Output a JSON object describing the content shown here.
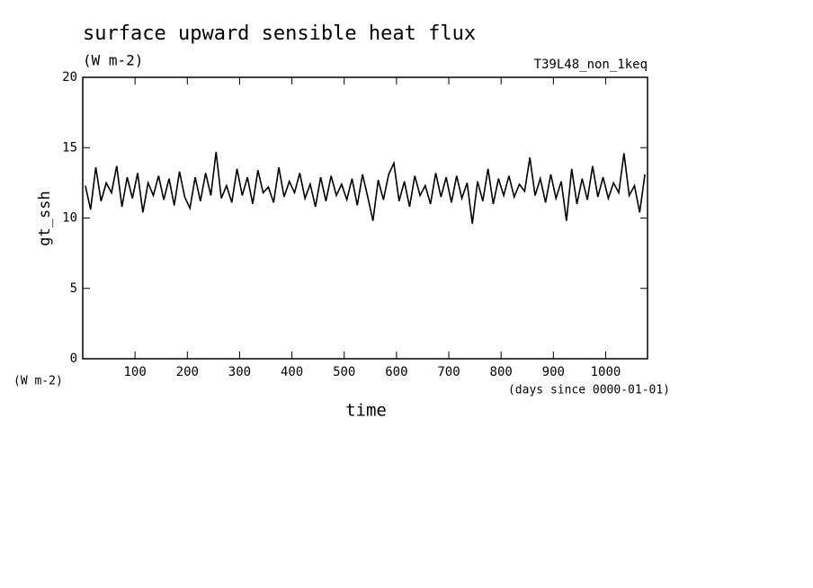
{
  "chart_data": {
    "type": "line",
    "title": "surface upward sensible heat flux",
    "subtitle": "(W m-2)",
    "experiment": "T39L48_non_1keq",
    "ylabel": "gt_ssh",
    "y_unit": "(W m-2)",
    "xlabel": "time",
    "x_unit": "(days since 0000-01-01)",
    "x": [
      5,
      15,
      25,
      35,
      45,
      55,
      65,
      75,
      85,
      95,
      105,
      115,
      125,
      135,
      145,
      155,
      165,
      175,
      185,
      195,
      205,
      215,
      225,
      235,
      245,
      255,
      265,
      275,
      285,
      295,
      305,
      315,
      325,
      335,
      345,
      355,
      365,
      375,
      385,
      395,
      405,
      415,
      425,
      435,
      445,
      455,
      465,
      475,
      485,
      495,
      505,
      515,
      525,
      535,
      545,
      555,
      565,
      575,
      585,
      595,
      605,
      615,
      625,
      635,
      645,
      655,
      665,
      675,
      685,
      695,
      705,
      715,
      725,
      735,
      745,
      755,
      765,
      775,
      785,
      795,
      805,
      815,
      825,
      835,
      845,
      855,
      865,
      875,
      885,
      895,
      905,
      915,
      925,
      935,
      945,
      955,
      965,
      975,
      985,
      995,
      1005,
      1015,
      1025,
      1035,
      1045,
      1055,
      1065,
      1075
    ],
    "series": [
      {
        "name": "gt_ssh",
        "color": "#000000",
        "values": [
          12.3,
          10.6,
          13.6,
          11.2,
          12.5,
          11.8,
          13.7,
          10.8,
          12.9,
          11.4,
          13.2,
          10.4,
          12.5,
          11.6,
          13.0,
          11.3,
          12.8,
          10.9,
          13.3,
          11.5,
          10.7,
          12.9,
          11.2,
          13.2,
          11.6,
          14.7,
          11.4,
          12.3,
          11.1,
          13.5,
          11.6,
          12.9,
          11.0,
          13.4,
          11.8,
          12.2,
          11.1,
          13.6,
          11.5,
          12.6,
          11.8,
          13.2,
          11.4,
          12.4,
          10.8,
          12.9,
          11.2,
          13.0,
          11.6,
          12.4,
          11.3,
          12.8,
          10.9,
          13.1,
          11.5,
          9.8,
          12.7,
          11.3,
          13.1,
          13.9,
          11.2,
          12.6,
          10.8,
          13.0,
          11.6,
          12.3,
          11.0,
          13.2,
          11.5,
          12.9,
          11.1,
          13.0,
          11.4,
          12.5,
          9.6,
          12.6,
          11.2,
          13.5,
          11.0,
          12.8,
          11.6,
          13.0,
          11.5,
          12.4,
          11.9,
          14.3,
          11.6,
          12.8,
          11.1,
          13.1,
          11.4,
          12.6,
          9.8,
          13.5,
          11.0,
          12.8,
          11.3,
          13.7,
          11.5,
          12.9,
          11.4,
          12.5,
          11.8,
          14.6,
          11.6,
          12.3,
          10.4,
          13.1
        ]
      }
    ],
    "xlim": [
      0,
      1080
    ],
    "ylim": [
      0,
      20
    ],
    "xticks": [
      100,
      200,
      300,
      400,
      500,
      600,
      700,
      800,
      900,
      1000
    ],
    "yticks": [
      0,
      5,
      10,
      15,
      20
    ]
  }
}
